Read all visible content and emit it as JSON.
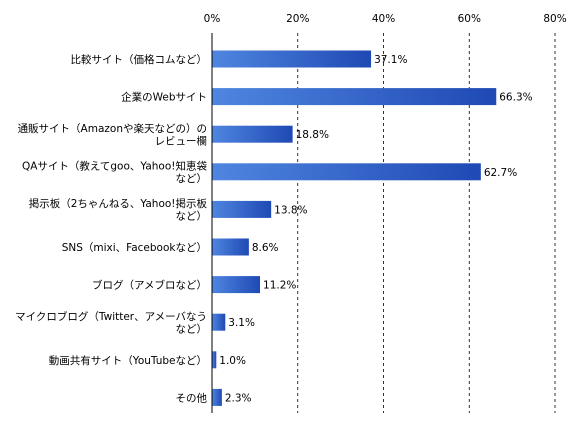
{
  "chart_data": {
    "type": "bar",
    "orientation": "horizontal",
    "categories": [
      [
        "比較サイト（価格コムなど）"
      ],
      [
        "企業のWebサイト"
      ],
      [
        "通販サイト（Amazonや楽天などの）の",
        "レビュー欄"
      ],
      [
        "QAサイト（教えてgoo、Yahoo!知恵袋",
        "など）"
      ],
      [
        "掲示板（2ちゃんねる、Yahoo!掲示板",
        "など）"
      ],
      [
        "SNS（mixi、Facebookなど）"
      ],
      [
        "ブログ（アメブロなど）"
      ],
      [
        "マイクロブログ（Twitter、アメーバなう",
        "など）"
      ],
      [
        "動画共有サイト（YouTubeなど）"
      ],
      [
        "その他"
      ]
    ],
    "values": [
      37.1,
      66.3,
      18.8,
      62.7,
      13.8,
      8.6,
      11.2,
      3.1,
      1.0,
      2.3
    ],
    "value_labels": [
      "37.1%",
      "66.3%",
      "18.8%",
      "62.7%",
      "13.8%",
      "8.6%",
      "11.2%",
      "3.1%",
      "1.0%",
      "2.3%"
    ],
    "xlim": [
      0,
      80
    ],
    "x_ticks": [
      0,
      20,
      40,
      60,
      80
    ],
    "x_tick_labels": [
      "0%",
      "20%",
      "40%",
      "60%",
      "80%"
    ],
    "x_axis_position": "top",
    "grid": "vertical dashed",
    "bar_color_start": "#4f86e0",
    "bar_color_end": "#1f49b4",
    "gridline_color": "#000000"
  }
}
